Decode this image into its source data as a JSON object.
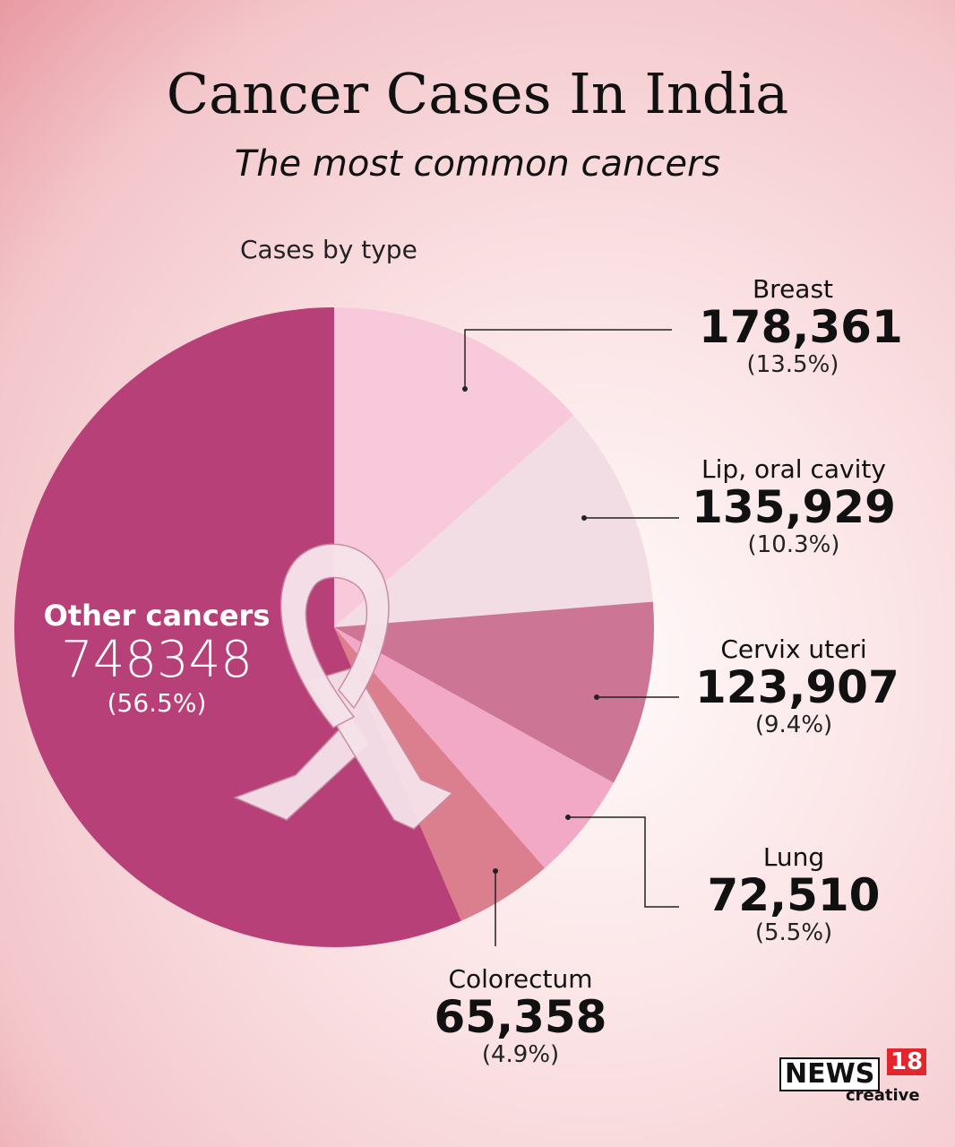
{
  "title": "Cancer Cases In India",
  "subtitle": "The most common cancers",
  "cases_label": "Cases by type",
  "logo": {
    "news": "NEWS",
    "number": "18",
    "tagline": "creative"
  },
  "chart_data": {
    "type": "pie",
    "title": "Cancer Cases In India",
    "subtitle": "The most common cancers",
    "slices": [
      {
        "name": "Breast",
        "value": 178361,
        "value_label": "178,361",
        "percent": 13.5,
        "percent_label": "(13.5%)",
        "color": "#f7c9da"
      },
      {
        "name": "Lip, oral cavity",
        "value": 135929,
        "value_label": "135,929",
        "percent": 10.3,
        "percent_label": "(10.3%)",
        "color": "#f3dde5"
      },
      {
        "name": "Cervix uteri",
        "value": 123907,
        "value_label": "123,907",
        "percent": 9.4,
        "percent_label": "(9.4%)",
        "color": "#cc7595"
      },
      {
        "name": "Lung",
        "value": 72510,
        "value_label": "72,510",
        "percent": 5.5,
        "percent_label": "(5.5%)",
        "color": "#f2a9c5"
      },
      {
        "name": "Colorectum",
        "value": 65358,
        "value_label": "65,358",
        "percent": 4.9,
        "percent_label": "(4.9%)",
        "color": "#db7f8e"
      },
      {
        "name": "Other cancers",
        "value": 748348,
        "value_label": "748348",
        "percent": 56.5,
        "percent_label": "(56.5%)",
        "color": "#b84079"
      }
    ],
    "ribbon_color": "#f6e3ea",
    "leader_color": "#222222"
  }
}
